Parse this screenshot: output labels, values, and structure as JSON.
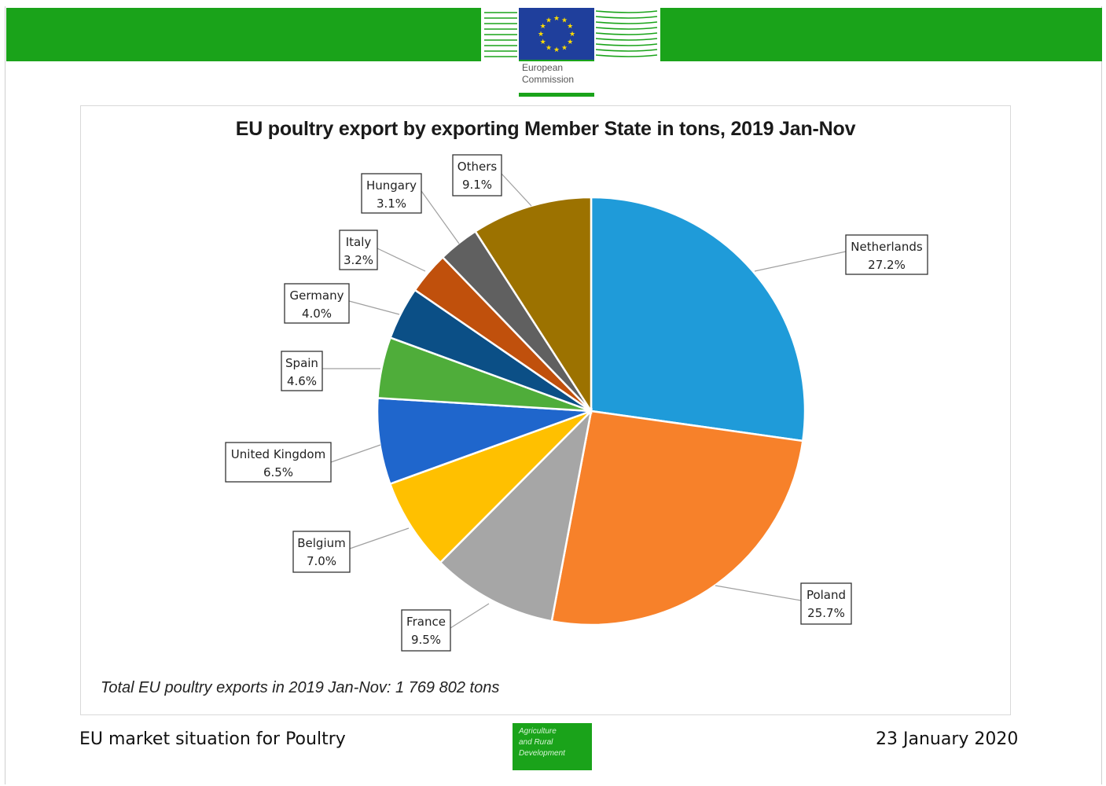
{
  "header": {
    "org_name": "European\nCommission",
    "brand_green": "#1aa31a",
    "flag_blue": "#1f3f9c",
    "flag_star_color": "#ffdd00"
  },
  "chart_data": {
    "type": "pie",
    "title": "EU poultry export by exporting Member State in tons, 2019 Jan-Nov",
    "slices": [
      {
        "label": "Netherlands",
        "value": 27.2,
        "display": "27.2%",
        "color": "#1f9bd9"
      },
      {
        "label": "Poland",
        "value": 25.7,
        "display": "25.7%",
        "color": "#f7812a"
      },
      {
        "label": "France",
        "value": 9.5,
        "display": "9.5%",
        "color": "#a6a6a6"
      },
      {
        "label": "Belgium",
        "value": 7.0,
        "display": "7.0%",
        "color": "#ffc000"
      },
      {
        "label": "United Kingdom",
        "value": 6.5,
        "display": "6.5%",
        "color": "#1f66cc"
      },
      {
        "label": "Spain",
        "value": 4.6,
        "display": "4.6%",
        "color": "#4fad3a"
      },
      {
        "label": "Germany",
        "value": 4.0,
        "display": "4.0%",
        "color": "#0b4f86"
      },
      {
        "label": "Italy",
        "value": 3.2,
        "display": "3.2%",
        "color": "#c0500c"
      },
      {
        "label": "Hungary",
        "value": 3.1,
        "display": "3.1%",
        "color": "#606060"
      },
      {
        "label": "Others",
        "value": 9.1,
        "display": "9.1%",
        "color": "#9c7200"
      }
    ],
    "start": "12 o'clock, clockwise",
    "legend": "none (callout data labels)",
    "footnote": "Total EU poultry exports in 2019 Jan-Nov: 1 769 802 tons"
  },
  "footer": {
    "left_text": "EU market situation for Poultry",
    "dg_name": "Agriculture\nand Rural\nDevelopment",
    "date": "23 January 2020"
  }
}
